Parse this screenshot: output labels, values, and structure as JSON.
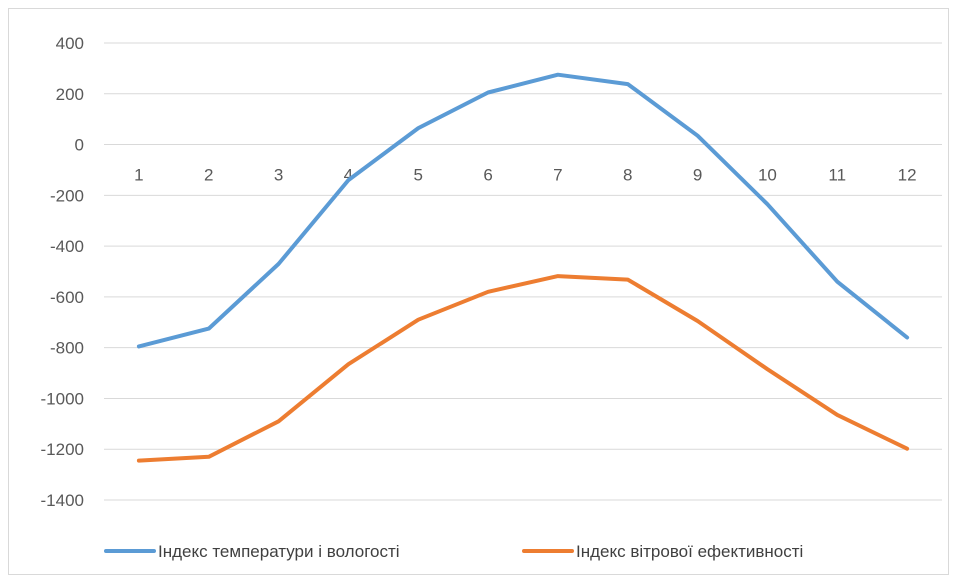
{
  "chart_data": {
    "type": "line",
    "title": "",
    "xlabel": "",
    "ylabel": "",
    "categories": [
      "1",
      "2",
      "3",
      "4",
      "5",
      "6",
      "7",
      "8",
      "9",
      "10",
      "11",
      "12"
    ],
    "ylim": [
      -1400,
      400
    ],
    "yticks": [
      "400",
      "200",
      "0",
      "-200",
      "-400",
      "-600",
      "-800",
      "-1000",
      "-1200",
      "-1400"
    ],
    "grid": true,
    "legend_position": "bottom",
    "series": [
      {
        "name": "Індекс температури і вологості",
        "color": "#5b9bd5",
        "values": [
          -795,
          -725,
          -470,
          -140,
          65,
          205,
          275,
          238,
          35,
          -235,
          -540,
          -760
        ]
      },
      {
        "name": "Індекс вітрової ефективності",
        "color": "#ed7d31",
        "values": [
          -1245,
          -1230,
          -1090,
          -865,
          -690,
          -580,
          -518,
          -532,
          -695,
          -885,
          -1065,
          -1198
        ]
      }
    ]
  }
}
